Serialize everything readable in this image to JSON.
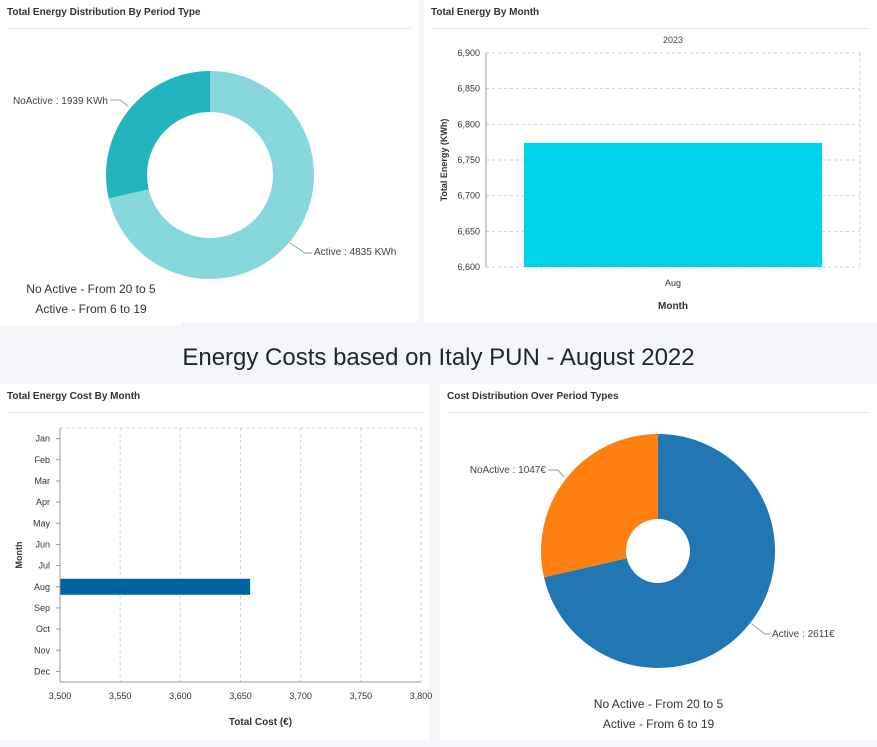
{
  "panels": {
    "p1_title": "Total Energy Distribution By Period Type",
    "p2_title": "Total Energy By Month",
    "p3_title": "Total Energy Cost By Month",
    "p4_title": "Cost Distribution Over Period Types"
  },
  "section_title": "Energy Costs based on Italy PUN - August 2022",
  "legend1": {
    "line1": "No Active - From 20 to 5",
    "line2": "Active - From 6 to 19"
  },
  "legend2": {
    "line1": "No Active - From 20 to 5",
    "line2": "Active - From 6 to 19"
  },
  "colors": {
    "noactive_energy": "#22b5c0",
    "active_energy": "#86d8dc",
    "bar_energy": "#00d2ea",
    "bar_cost": "#0062a0",
    "active_cost": "#2176b4",
    "noactive_cost": "#ff7f10"
  },
  "chart_data": [
    {
      "type": "pie",
      "title": "Total Energy Distribution By Period Type",
      "slices": [
        {
          "label": "NoActive",
          "value": 1939,
          "text": "NoActive : 1939 KWh"
        },
        {
          "label": "Active",
          "value": 4835,
          "text": "Active : 4835 KWh"
        }
      ]
    },
    {
      "type": "bar",
      "title": "Total Energy By Month",
      "subtitle": "2023",
      "categories": [
        "Aug"
      ],
      "values": [
        6774
      ],
      "xlabel": "Month",
      "ylabel": "Total Energy (KWh)",
      "ylim": [
        6600,
        6900
      ],
      "yticks": [
        "6,600",
        "6,650",
        "6,700",
        "6,750",
        "6,800",
        "6,850",
        "6,900"
      ]
    },
    {
      "type": "bar",
      "orientation": "horizontal",
      "title": "Total Energy Cost By Month",
      "categories": [
        "Jan",
        "Feb",
        "Mar",
        "Apr",
        "May",
        "Jun",
        "Jul",
        "Aug",
        "Sep",
        "Oct",
        "Nov",
        "Dec"
      ],
      "values": [
        null,
        null,
        null,
        null,
        null,
        null,
        null,
        3658,
        null,
        null,
        null,
        null
      ],
      "xlabel": "Total Cost (€)",
      "ylabel": "Month",
      "xlim": [
        3500,
        3800
      ],
      "xticks": [
        "3,500",
        "3,550",
        "3,600",
        "3,650",
        "3,700",
        "3,750",
        "3,800"
      ]
    },
    {
      "type": "pie",
      "title": "Cost Distribution Over Period Types",
      "slices": [
        {
          "label": "NoActive",
          "value": 1047,
          "text": "NoActive : 1047€"
        },
        {
          "label": "Active",
          "value": 2611,
          "text": "Active : 2611€"
        }
      ]
    }
  ]
}
